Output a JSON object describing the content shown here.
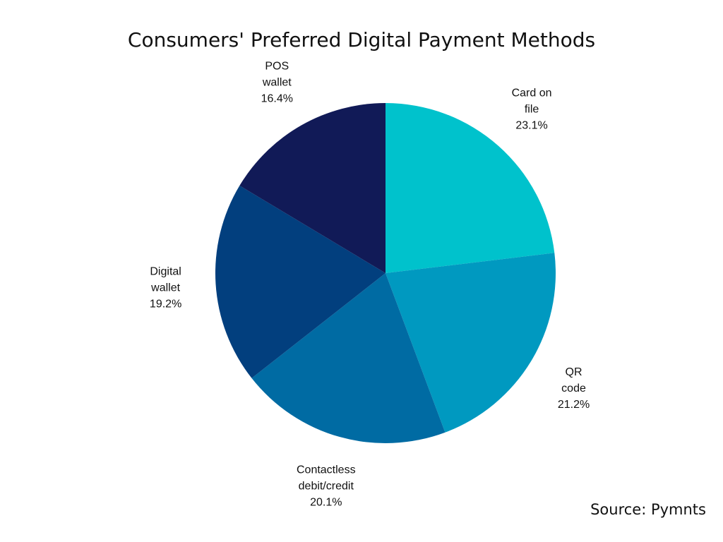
{
  "chart_data": {
    "type": "pie",
    "title": "Consumers' Preferred Digital Payment Methods",
    "source": "Source: Pymnts",
    "slices": [
      {
        "lines": [
          "Card on",
          "file"
        ],
        "value": 23.1,
        "label": "23.1%",
        "color": "#00c2cc"
      },
      {
        "lines": [
          "QR",
          "code"
        ],
        "value": 21.2,
        "label": "21.2%",
        "color": "#0099c0"
      },
      {
        "lines": [
          "Contactless",
          "debit/credit"
        ],
        "value": 20.1,
        "label": "20.1%",
        "color": "#006ba3"
      },
      {
        "lines": [
          "Digital",
          "wallet"
        ],
        "value": 19.2,
        "label": "19.2%",
        "color": "#023f7e"
      },
      {
        "lines": [
          "POS",
          "wallet"
        ],
        "value": 16.4,
        "label": "16.4%",
        "color": "#111a57"
      }
    ]
  }
}
